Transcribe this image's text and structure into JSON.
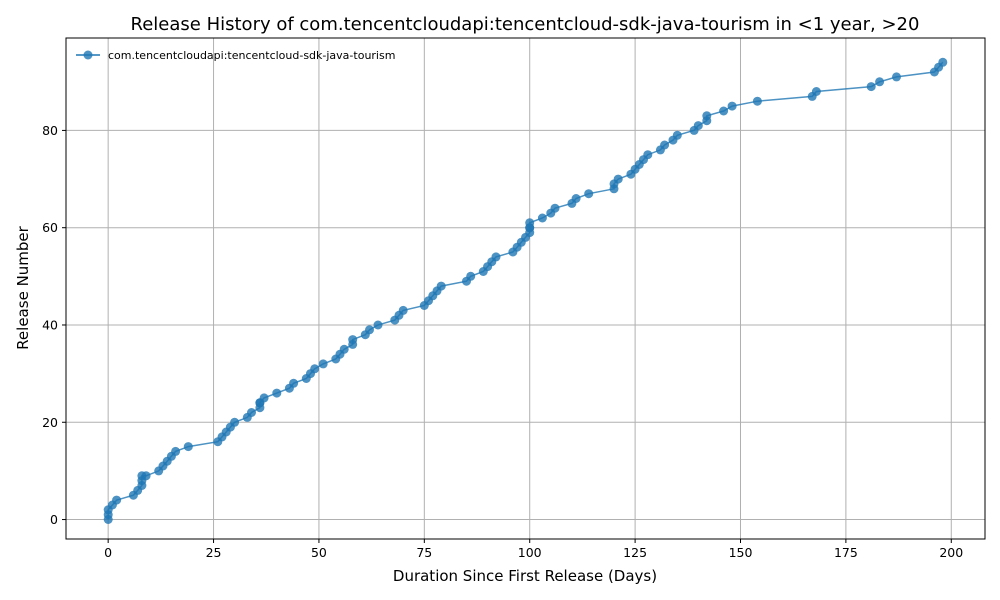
{
  "chart_data": {
    "type": "line",
    "title": "Release History of com.tencentcloudapi:tencentcloud-sdk-java-tourism in <1 year, >20",
    "xlabel": "Duration Since First Release (Days)",
    "ylabel": "Release Number",
    "xlim": [
      -10,
      208
    ],
    "ylim": [
      -4,
      99
    ],
    "xticks": [
      0,
      25,
      50,
      75,
      100,
      125,
      150,
      175,
      200
    ],
    "yticks": [
      0,
      20,
      40,
      60,
      80
    ],
    "grid": true,
    "legend_position": "top-left",
    "colors": {
      "series": "#1f77b4"
    },
    "series": [
      {
        "name": "com.tencentcloudapi:tencentcloud-sdk-java-tourism",
        "x": [
          0,
          0,
          0,
          1,
          2,
          6,
          7,
          8,
          8,
          8,
          9,
          12,
          13,
          14,
          15,
          16,
          19,
          26,
          27,
          28,
          29,
          30,
          33,
          34,
          36,
          36,
          36,
          37,
          40,
          43,
          44,
          47,
          48,
          49,
          51,
          54,
          55,
          56,
          58,
          58,
          61,
          62,
          64,
          68,
          69,
          70,
          75,
          76,
          77,
          78,
          79,
          85,
          86,
          89,
          90,
          91,
          92,
          96,
          97,
          98,
          99,
          100,
          100,
          100,
          100,
          103,
          105,
          106,
          110,
          111,
          114,
          120,
          120,
          121,
          124,
          125,
          126,
          127,
          128,
          131,
          132,
          134,
          135,
          139,
          140,
          142,
          142,
          146,
          148,
          154,
          167,
          168,
          181,
          183,
          187,
          196,
          197,
          198
        ],
        "y": [
          0,
          1,
          2,
          3,
          4,
          5,
          6,
          7,
          8,
          9,
          9,
          10,
          11,
          12,
          13,
          14,
          15,
          16,
          17,
          18,
          19,
          20,
          21,
          22,
          23,
          24,
          24,
          25,
          26,
          27,
          28,
          29,
          30,
          31,
          32,
          33,
          34,
          35,
          36,
          37,
          38,
          39,
          40,
          41,
          42,
          43,
          44,
          45,
          46,
          47,
          48,
          49,
          50,
          51,
          52,
          53,
          54,
          55,
          56,
          57,
          58,
          59,
          60,
          60,
          61,
          62,
          63,
          64,
          65,
          66,
          67,
          68,
          69,
          70,
          71,
          72,
          73,
          74,
          75,
          76,
          77,
          78,
          79,
          80,
          81,
          82,
          83,
          84,
          85,
          86,
          87,
          88,
          89,
          90,
          91,
          92,
          93,
          94
        ]
      }
    ]
  }
}
